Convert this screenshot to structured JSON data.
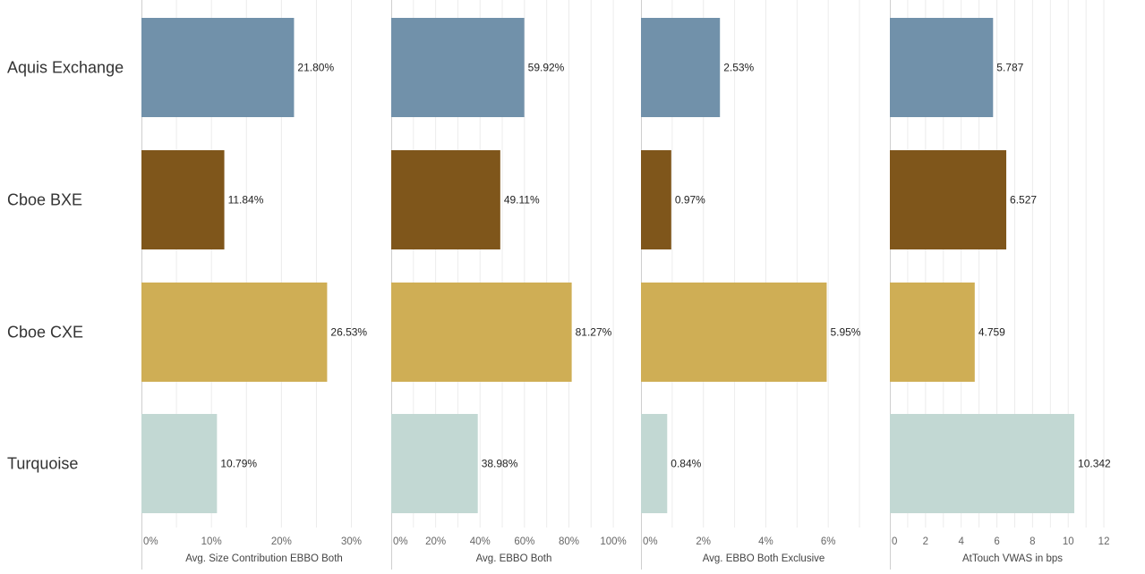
{
  "chart_data": {
    "type": "bar",
    "orientation": "horizontal",
    "categories": [
      "Aquis Exchange",
      "Cboe BXE",
      "Cboe CXE",
      "Turquoise"
    ],
    "category_colors": [
      "#7191aa",
      "#7f561b",
      "#cfae55",
      "#c2d8d3"
    ],
    "grid": true,
    "panels": [
      {
        "xlabel": "Avg. Size Contribution EBBO Both",
        "values": [
          21.8,
          11.84,
          26.53,
          10.79
        ],
        "value_labels": [
          "21.80%",
          "11.84%",
          "26.53%",
          "10.79%"
        ],
        "xlim": [
          0,
          33
        ],
        "ticks": [
          0,
          10,
          20,
          30
        ],
        "tick_labels": [
          "0%",
          "10%",
          "20%",
          "30%"
        ],
        "minor_step": 5
      },
      {
        "xlabel": "Avg. EBBO Both",
        "values": [
          59.92,
          49.11,
          81.27,
          38.98
        ],
        "value_labels": [
          "59.92%",
          "49.11%",
          "81.27%",
          "38.98%"
        ],
        "xlim": [
          0,
          104
        ],
        "ticks": [
          0,
          20,
          40,
          60,
          80,
          100
        ],
        "tick_labels": [
          "0%",
          "20%",
          "40%",
          "60%",
          "80%",
          "100%"
        ],
        "minor_step": 10
      },
      {
        "xlabel": "Avg. EBBO Both Exclusive",
        "values": [
          2.53,
          0.97,
          5.95,
          0.84
        ],
        "value_labels": [
          "2.53%",
          "0.97%",
          "5.95%",
          "0.84%"
        ],
        "xlim": [
          0,
          7.4
        ],
        "ticks": [
          0,
          2,
          4,
          6
        ],
        "tick_labels": [
          "0%",
          "2%",
          "4%",
          "6%"
        ],
        "minor_step": 1
      },
      {
        "xlabel": "AtTouch VWAS in bps",
        "values": [
          5.787,
          6.527,
          4.759,
          10.342
        ],
        "value_labels": [
          "5.787",
          "6.527",
          "4.759",
          "10.342"
        ],
        "xlim": [
          0,
          12.95
        ],
        "ticks": [
          0,
          2,
          4,
          6,
          8,
          10,
          12
        ],
        "tick_labels": [
          "0",
          "2",
          "4",
          "6",
          "8",
          "10",
          "12"
        ],
        "minor_step": 1
      }
    ]
  }
}
